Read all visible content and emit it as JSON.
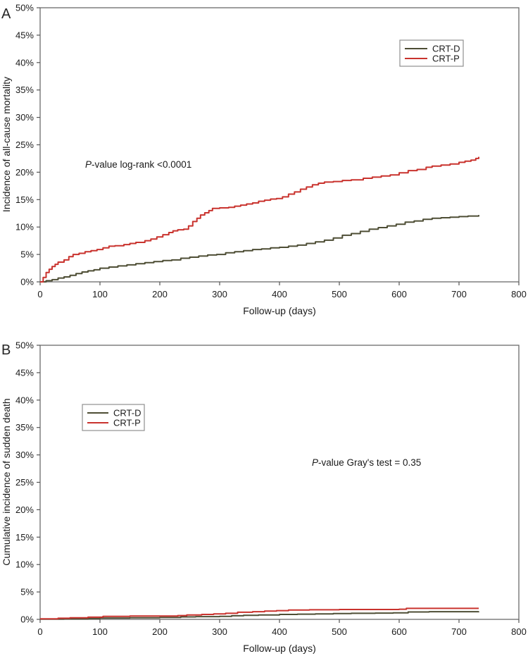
{
  "chart_data": [
    {
      "type": "line",
      "panel_label": "A",
      "xlabel": "Follow-up (days)",
      "ylabel": "Incidence of all-cause mortality",
      "xlim": [
        0,
        800
      ],
      "ylim": [
        0,
        50
      ],
      "x_ticks": [
        0,
        100,
        200,
        300,
        400,
        500,
        600,
        700,
        800
      ],
      "y_ticks": [
        0,
        5,
        10,
        15,
        20,
        25,
        30,
        35,
        40,
        45,
        50
      ],
      "y_tick_suffix": "%",
      "grid": false,
      "step": true,
      "legend_position": "top-right",
      "annotation": {
        "italic": "P",
        "rest": "-value log-rank <0.0001"
      },
      "series": [
        {
          "name": "CRT-D",
          "color": "#4e4e35",
          "points": [
            [
              0,
              0
            ],
            [
              10,
              0.2
            ],
            [
              20,
              0.4
            ],
            [
              30,
              0.7
            ],
            [
              40,
              0.9
            ],
            [
              50,
              1.2
            ],
            [
              60,
              1.5
            ],
            [
              70,
              1.8
            ],
            [
              80,
              2.0
            ],
            [
              90,
              2.2
            ],
            [
              100,
              2.5
            ],
            [
              115,
              2.7
            ],
            [
              130,
              2.9
            ],
            [
              145,
              3.1
            ],
            [
              160,
              3.3
            ],
            [
              175,
              3.5
            ],
            [
              190,
              3.7
            ],
            [
              205,
              3.9
            ],
            [
              220,
              4.0
            ],
            [
              235,
              4.3
            ],
            [
              250,
              4.5
            ],
            [
              265,
              4.7
            ],
            [
              280,
              4.9
            ],
            [
              295,
              5.0
            ],
            [
              310,
              5.3
            ],
            [
              325,
              5.5
            ],
            [
              340,
              5.7
            ],
            [
              355,
              5.9
            ],
            [
              370,
              6.0
            ],
            [
              385,
              6.2
            ],
            [
              400,
              6.3
            ],
            [
              415,
              6.5
            ],
            [
              430,
              6.7
            ],
            [
              445,
              7.0
            ],
            [
              460,
              7.3
            ],
            [
              475,
              7.6
            ],
            [
              490,
              8.0
            ],
            [
              505,
              8.5
            ],
            [
              520,
              8.8
            ],
            [
              535,
              9.2
            ],
            [
              550,
              9.6
            ],
            [
              565,
              9.9
            ],
            [
              580,
              10.2
            ],
            [
              595,
              10.5
            ],
            [
              610,
              10.9
            ],
            [
              625,
              11.1
            ],
            [
              640,
              11.4
            ],
            [
              655,
              11.6
            ],
            [
              670,
              11.7
            ],
            [
              685,
              11.8
            ],
            [
              700,
              11.9
            ],
            [
              715,
              12.0
            ],
            [
              733,
              12.2
            ]
          ]
        },
        {
          "name": "CRT-P",
          "color": "#c9332e",
          "points": [
            [
              0,
              0
            ],
            [
              5,
              0.8
            ],
            [
              10,
              1.7
            ],
            [
              15,
              2.3
            ],
            [
              20,
              2.8
            ],
            [
              25,
              3.2
            ],
            [
              30,
              3.6
            ],
            [
              40,
              4.0
            ],
            [
              48,
              4.6
            ],
            [
              55,
              5.0
            ],
            [
              65,
              5.2
            ],
            [
              75,
              5.5
            ],
            [
              85,
              5.7
            ],
            [
              95,
              5.9
            ],
            [
              105,
              6.2
            ],
            [
              115,
              6.5
            ],
            [
              125,
              6.6
            ],
            [
              140,
              6.8
            ],
            [
              150,
              7.0
            ],
            [
              160,
              7.2
            ],
            [
              175,
              7.5
            ],
            [
              185,
              7.8
            ],
            [
              195,
              8.2
            ],
            [
              205,
              8.6
            ],
            [
              215,
              9.0
            ],
            [
              222,
              9.3
            ],
            [
              230,
              9.5
            ],
            [
              240,
              9.6
            ],
            [
              248,
              10.2
            ],
            [
              255,
              11.0
            ],
            [
              262,
              11.6
            ],
            [
              268,
              12.2
            ],
            [
              275,
              12.6
            ],
            [
              282,
              13.0
            ],
            [
              288,
              13.4
            ],
            [
              300,
              13.5
            ],
            [
              315,
              13.6
            ],
            [
              325,
              13.8
            ],
            [
              335,
              14.0
            ],
            [
              345,
              14.2
            ],
            [
              355,
              14.4
            ],
            [
              365,
              14.7
            ],
            [
              375,
              14.9
            ],
            [
              385,
              15.1
            ],
            [
              395,
              15.2
            ],
            [
              405,
              15.5
            ],
            [
              415,
              16.0
            ],
            [
              425,
              16.4
            ],
            [
              435,
              16.9
            ],
            [
              445,
              17.3
            ],
            [
              455,
              17.7
            ],
            [
              465,
              18.0
            ],
            [
              475,
              18.2
            ],
            [
              490,
              18.3
            ],
            [
              505,
              18.5
            ],
            [
              520,
              18.6
            ],
            [
              540,
              18.9
            ],
            [
              555,
              19.1
            ],
            [
              570,
              19.3
            ],
            [
              585,
              19.5
            ],
            [
              600,
              19.9
            ],
            [
              615,
              20.3
            ],
            [
              630,
              20.5
            ],
            [
              645,
              20.9
            ],
            [
              655,
              21.1
            ],
            [
              670,
              21.3
            ],
            [
              685,
              21.5
            ],
            [
              700,
              21.8
            ],
            [
              710,
              22.0
            ],
            [
              720,
              22.2
            ],
            [
              728,
              22.5
            ],
            [
              733,
              22.8
            ]
          ]
        }
      ]
    },
    {
      "type": "line",
      "panel_label": "B",
      "xlabel": "Follow-up (days)",
      "ylabel": "Cumulative incidence of sudden death",
      "xlim": [
        0,
        800
      ],
      "ylim": [
        0,
        50
      ],
      "x_ticks": [
        0,
        100,
        200,
        300,
        400,
        500,
        600,
        700,
        800
      ],
      "y_ticks": [
        0,
        5,
        10,
        15,
        20,
        25,
        30,
        35,
        40,
        45,
        50
      ],
      "y_tick_suffix": "%",
      "grid": false,
      "step": true,
      "legend_position": "upper-left",
      "annotation": {
        "italic": "P",
        "rest": "-value Gray's test = 0.35"
      },
      "series": [
        {
          "name": "CRT-D",
          "color": "#4e4e35",
          "points": [
            [
              0,
              0.05
            ],
            [
              40,
              0.1
            ],
            [
              80,
              0.15
            ],
            [
              100,
              0.25
            ],
            [
              150,
              0.3
            ],
            [
              200,
              0.35
            ],
            [
              235,
              0.45
            ],
            [
              260,
              0.5
            ],
            [
              300,
              0.55
            ],
            [
              320,
              0.65
            ],
            [
              340,
              0.75
            ],
            [
              365,
              0.8
            ],
            [
              400,
              0.9
            ],
            [
              430,
              0.95
            ],
            [
              460,
              1.0
            ],
            [
              490,
              1.05
            ],
            [
              520,
              1.1
            ],
            [
              560,
              1.15
            ],
            [
              590,
              1.2
            ],
            [
              615,
              1.35
            ],
            [
              650,
              1.4
            ],
            [
              700,
              1.4
            ],
            [
              733,
              1.45
            ]
          ]
        },
        {
          "name": "CRT-P",
          "color": "#c9332e",
          "points": [
            [
              0,
              0.1
            ],
            [
              30,
              0.2
            ],
            [
              50,
              0.3
            ],
            [
              80,
              0.4
            ],
            [
              105,
              0.55
            ],
            [
              150,
              0.6
            ],
            [
              200,
              0.6
            ],
            [
              230,
              0.7
            ],
            [
              245,
              0.8
            ],
            [
              270,
              0.9
            ],
            [
              290,
              1.0
            ],
            [
              310,
              1.1
            ],
            [
              330,
              1.3
            ],
            [
              355,
              1.4
            ],
            [
              375,
              1.5
            ],
            [
              395,
              1.6
            ],
            [
              415,
              1.7
            ],
            [
              450,
              1.75
            ],
            [
              500,
              1.8
            ],
            [
              550,
              1.8
            ],
            [
              600,
              1.85
            ],
            [
              612,
              2.0
            ],
            [
              660,
              2.0
            ],
            [
              733,
              2.0
            ]
          ]
        }
      ]
    }
  ]
}
